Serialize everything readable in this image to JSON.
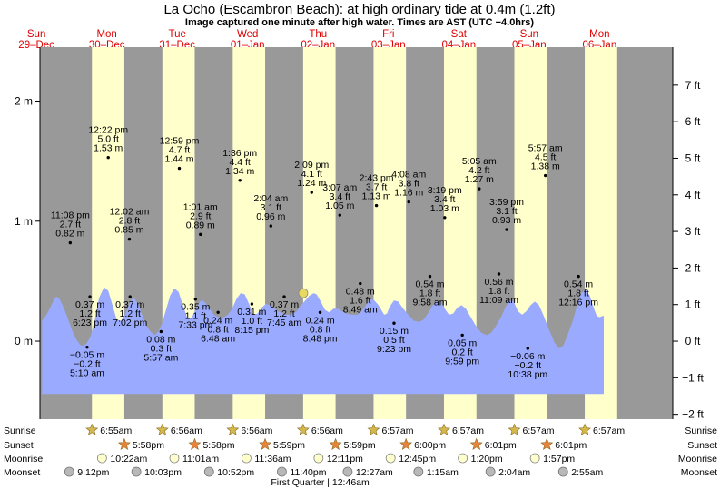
{
  "header": {
    "title": "La Ocho (Escambron Beach): at high  ordinary tide at 0.4m (1.2ft)",
    "subtitle": "Image captured one minute after high water. Times are AST (UTC −4.0hrs)"
  },
  "colors": {
    "night": "#999999",
    "day": "#ffffcc",
    "tide": "#9aaaff",
    "day_label": "#e00000",
    "sun_marker": "#e8d860",
    "sunrise_icon": "#d4b84a",
    "sunset_icon": "#e8843a",
    "moonrise_icon": "#ffffcc",
    "moonset_icon": "#b8b8b8"
  },
  "chart_data": {
    "type": "area",
    "x_unit": "days from 29-Dec 00:00 AST",
    "xlim": [
      0.55,
      9.54
    ],
    "ylim": [
      -0.65,
      2.45
    ],
    "y_left_ticks": [
      {
        "v": 0,
        "label": "0 m"
      },
      {
        "v": 1,
        "label": "1 m"
      },
      {
        "v": 2,
        "label": "2 m"
      }
    ],
    "y_right_ticks": [
      {
        "v": -0.6096,
        "label": "−2 ft"
      },
      {
        "v": -0.3048,
        "label": "−1 ft"
      },
      {
        "v": 0,
        "label": "0 ft"
      },
      {
        "v": 0.3048,
        "label": "1 ft"
      },
      {
        "v": 0.6096,
        "label": "2 ft"
      },
      {
        "v": 0.9144,
        "label": "3 ft"
      },
      {
        "v": 1.2192,
        "label": "4 ft"
      },
      {
        "v": 1.524,
        "label": "5 ft"
      },
      {
        "v": 1.8288,
        "label": "6 ft"
      },
      {
        "v": 2.1336,
        "label": "7 ft"
      }
    ],
    "days": [
      {
        "c": 0.5,
        "wd": "Sun",
        "d": "29–Dec"
      },
      {
        "c": 1.5,
        "wd": "Mon",
        "d": "30–Dec"
      },
      {
        "c": 2.5,
        "wd": "Tue",
        "d": "31–Dec"
      },
      {
        "c": 3.5,
        "wd": "Wed",
        "d": "01–Jan"
      },
      {
        "c": 4.5,
        "wd": "Thu",
        "d": "02–Jan"
      },
      {
        "c": 5.5,
        "wd": "Fri",
        "d": "03–Jan"
      },
      {
        "c": 6.5,
        "wd": "Sat",
        "d": "04–Jan"
      },
      {
        "c": 7.5,
        "wd": "Sun",
        "d": "05–Jan"
      },
      {
        "c": 8.5,
        "wd": "Mon",
        "d": "06–Jan"
      }
    ],
    "daylight": [
      [
        1.2882,
        1.7486
      ],
      [
        2.2889,
        2.7486
      ],
      [
        3.2889,
        3.7493
      ],
      [
        4.2889,
        4.7493
      ],
      [
        5.2896,
        5.75
      ],
      [
        6.2896,
        6.7507
      ],
      [
        7.2896,
        7.7507
      ],
      [
        8.2896,
        8.7507
      ]
    ],
    "tide_curve": [
      [
        0.58,
        0.17
      ],
      [
        0.62,
        0.2
      ],
      [
        0.67,
        0.25
      ],
      [
        0.72,
        0.31
      ],
      [
        0.76,
        0.36
      ],
      [
        0.79,
        0.37
      ],
      [
        0.83,
        0.35
      ],
      [
        0.88,
        0.29
      ],
      [
        0.94,
        0.2
      ],
      [
        1,
        0.1
      ],
      [
        1.06,
        0.02
      ],
      [
        1.12,
        -0.03
      ],
      [
        1.16,
        -0.04
      ],
      [
        1.21,
        -0.02
      ],
      [
        1.27,
        0.04
      ],
      [
        1.33,
        0.18
      ],
      [
        1.39,
        0.36
      ],
      [
        1.46,
        0.45
      ],
      [
        1.52,
        0.42
      ],
      [
        1.58,
        0.3
      ],
      [
        1.64,
        0.18
      ],
      [
        1.7,
        0.17
      ],
      [
        1.76,
        0.22
      ],
      [
        1.82,
        0.31
      ],
      [
        1.87,
        0.36
      ],
      [
        1.9,
        0.35
      ],
      [
        1.95,
        0.3
      ],
      [
        2,
        0.22
      ],
      [
        2.06,
        0.13
      ],
      [
        2.12,
        0.08
      ],
      [
        2.18,
        0.05
      ],
      [
        2.23,
        0.08
      ],
      [
        2.28,
        0.14
      ],
      [
        2.34,
        0.26
      ],
      [
        2.4,
        0.38
      ],
      [
        2.46,
        0.44
      ],
      [
        2.52,
        0.41
      ],
      [
        2.58,
        0.3
      ],
      [
        2.64,
        0.2
      ],
      [
        2.7,
        0.19
      ],
      [
        2.76,
        0.26
      ],
      [
        2.82,
        0.33
      ],
      [
        2.86,
        0.34
      ],
      [
        2.9,
        0.32
      ],
      [
        2.96,
        0.27
      ],
      [
        3.02,
        0.22
      ],
      [
        3.08,
        0.2
      ],
      [
        3.16,
        0.2
      ],
      [
        3.22,
        0.22
      ],
      [
        3.28,
        0.27
      ],
      [
        3.34,
        0.35
      ],
      [
        3.4,
        0.4
      ],
      [
        3.46,
        0.39
      ],
      [
        3.52,
        0.31
      ],
      [
        3.58,
        0.22
      ],
      [
        3.64,
        0.23
      ],
      [
        3.7,
        0.28
      ],
      [
        3.76,
        0.31
      ],
      [
        3.82,
        0.3
      ],
      [
        3.88,
        0.27
      ],
      [
        3.96,
        0.24
      ],
      [
        4.04,
        0.22
      ],
      [
        4.12,
        0.22
      ],
      [
        4.2,
        0.25
      ],
      [
        4.26,
        0.3
      ],
      [
        4.32,
        0.34
      ],
      [
        4.38,
        0.38
      ],
      [
        4.44,
        0.4
      ],
      [
        4.48,
        0.39
      ],
      [
        4.54,
        0.33
      ],
      [
        4.6,
        0.26
      ],
      [
        4.66,
        0.24
      ],
      [
        4.72,
        0.27
      ],
      [
        4.78,
        0.27
      ],
      [
        4.84,
        0.25
      ],
      [
        4.9,
        0.23
      ],
      [
        4.98,
        0.22
      ],
      [
        5.06,
        0.22
      ],
      [
        5.12,
        0.25
      ],
      [
        5.18,
        0.3
      ],
      [
        5.24,
        0.35
      ],
      [
        5.3,
        0.34
      ],
      [
        5.36,
        0.3
      ],
      [
        5.4,
        0.26
      ],
      [
        5.44,
        0.22
      ],
      [
        5.48,
        0.23
      ],
      [
        5.52,
        0.29
      ],
      [
        5.58,
        0.34
      ],
      [
        5.64,
        0.33
      ],
      [
        5.7,
        0.28
      ],
      [
        5.78,
        0.22
      ],
      [
        5.86,
        0.17
      ],
      [
        5.94,
        0.16
      ],
      [
        6,
        0.18
      ],
      [
        6.06,
        0.23
      ],
      [
        6.12,
        0.29
      ],
      [
        6.18,
        0.33
      ],
      [
        6.24,
        0.33
      ],
      [
        6.3,
        0.27
      ],
      [
        6.36,
        0.22
      ],
      [
        6.42,
        0.23
      ],
      [
        6.48,
        0.28
      ],
      [
        6.54,
        0.3
      ],
      [
        6.6,
        0.27
      ],
      [
        6.66,
        0.21
      ],
      [
        6.74,
        0.13
      ],
      [
        6.82,
        0.07
      ],
      [
        6.9,
        0.05
      ],
      [
        6.96,
        0.07
      ],
      [
        7.02,
        0.12
      ],
      [
        7.1,
        0.2
      ],
      [
        7.16,
        0.28
      ],
      [
        7.22,
        0.34
      ],
      [
        7.28,
        0.33
      ],
      [
        7.34,
        0.25
      ],
      [
        7.4,
        0.22
      ],
      [
        7.46,
        0.25
      ],
      [
        7.52,
        0.3
      ],
      [
        7.58,
        0.33
      ],
      [
        7.64,
        0.3
      ],
      [
        7.7,
        0.22
      ],
      [
        7.78,
        0.1
      ],
      [
        7.86,
        -0.01
      ],
      [
        7.92,
        -0.06
      ],
      [
        7.98,
        -0.04
      ],
      [
        8.04,
        0.04
      ],
      [
        8.12,
        0.17
      ],
      [
        8.18,
        0.3
      ],
      [
        8.24,
        0.4
      ],
      [
        8.3,
        0.43
      ],
      [
        8.36,
        0.38
      ],
      [
        8.42,
        0.27
      ],
      [
        8.46,
        0.21
      ],
      [
        8.5,
        0.2
      ],
      [
        8.54,
        0.21
      ],
      [
        8.56,
        0.21
      ]
    ],
    "extremes": [
      {
        "x": 0.98,
        "y": 0.82,
        "t": "11:08 pm",
        "ft": "2.7 ft",
        "m": "0.82 m",
        "pos": "above"
      },
      {
        "x": 1.26,
        "y": 0.37,
        "t": "6:23 pm",
        "ft": "1.2 ft",
        "m": "0.37 m",
        "pos": "below"
      },
      {
        "x": 1.22,
        "y": -0.05,
        "t": "5:10 am",
        "ft": "−0.2 ft",
        "m": "−0.05 m",
        "pos": "below"
      },
      {
        "x": 1.52,
        "y": 1.53,
        "t": "12:22 pm",
        "ft": "5.0 ft",
        "m": "1.53 m",
        "pos": "above"
      },
      {
        "x": 1.83,
        "y": 0.37,
        "t": "7:02 pm",
        "ft": "1.2 ft",
        "m": "0.37 m",
        "pos": "below"
      },
      {
        "x": 1.82,
        "y": 0.85,
        "t": "12:02 am",
        "ft": "2.8 ft",
        "m": "0.85 m",
        "pos": "above"
      },
      {
        "x": 2.27,
        "y": 0.08,
        "t": "5:57 am",
        "ft": "0.3 ft",
        "m": "0.08 m",
        "pos": "below"
      },
      {
        "x": 2.53,
        "y": 1.44,
        "t": "12:59 pm",
        "ft": "4.7 ft",
        "m": "1.44 m",
        "pos": "above"
      },
      {
        "x": 2.76,
        "y": 0.35,
        "t": "7:33 pm",
        "ft": "1.1 ft",
        "m": "0.35 m",
        "pos": "below"
      },
      {
        "x": 2.83,
        "y": 0.89,
        "t": "1:01 am",
        "ft": "2.9 ft",
        "m": "0.89 m",
        "pos": "above"
      },
      {
        "x": 3.08,
        "y": 0.24,
        "t": "6:48 am",
        "ft": "0.8 ft",
        "m": "0.24 m",
        "pos": "below"
      },
      {
        "x": 3.39,
        "y": 1.34,
        "t": "1:36 pm",
        "ft": "4.4 ft",
        "m": "1.34 m",
        "pos": "above"
      },
      {
        "x": 3.56,
        "y": 0.31,
        "t": "8:15 pm",
        "ft": "1.0 ft",
        "m": "0.31 m",
        "pos": "below"
      },
      {
        "x": 3.83,
        "y": 0.96,
        "t": "2:04 am",
        "ft": "3.1 ft",
        "m": "0.96 m",
        "pos": "above"
      },
      {
        "x": 4.02,
        "y": 0.37,
        "t": "7:45 am",
        "ft": "1.2 ft",
        "m": "0.37 m",
        "pos": "below"
      },
      {
        "x": 4.41,
        "y": 1.24,
        "t": "2:09 pm",
        "ft": "4.1 ft",
        "m": "1.24 m",
        "pos": "above"
      },
      {
        "x": 4.53,
        "y": 0.24,
        "t": "8:48 pm",
        "ft": "0.8 ft",
        "m": "0.24 m",
        "pos": "below"
      },
      {
        "x": 4.81,
        "y": 1.05,
        "t": "3:07 am",
        "ft": "3.4 ft",
        "m": "1.05 m",
        "pos": "above"
      },
      {
        "x": 5.1,
        "y": 0.48,
        "t": "8:49 am",
        "ft": "1.6 ft",
        "m": "0.48 m",
        "pos": "below"
      },
      {
        "x": 5.33,
        "y": 1.13,
        "t": "2:43 pm",
        "ft": "3.7 ft",
        "m": "1.13 m",
        "pos": "above"
      },
      {
        "x": 5.58,
        "y": 0.15,
        "t": "9:23 pm",
        "ft": "0.5 ft",
        "m": "0.15 m",
        "pos": "below"
      },
      {
        "x": 5.79,
        "y": 1.16,
        "t": "4:08 am",
        "ft": "3.8 ft",
        "m": "1.16 m",
        "pos": "above"
      },
      {
        "x": 6.09,
        "y": 0.54,
        "t": "9:58 am",
        "ft": "1.8 ft",
        "m": "0.54 m",
        "pos": "below"
      },
      {
        "x": 6.3,
        "y": 1.03,
        "t": "3:19 pm",
        "ft": "3.4 ft",
        "m": "1.03 m",
        "pos": "above"
      },
      {
        "x": 6.55,
        "y": 0.05,
        "t": "9:59 pm",
        "ft": "0.2 ft",
        "m": "0.05 m",
        "pos": "below"
      },
      {
        "x": 6.79,
        "y": 1.27,
        "t": "5:05 am",
        "ft": "4.2 ft",
        "m": "1.27 m",
        "pos": "above"
      },
      {
        "x": 7.07,
        "y": 0.56,
        "t": "11:09 am",
        "ft": "1.8 ft",
        "m": "0.56 m",
        "pos": "below"
      },
      {
        "x": 7.18,
        "y": 0.93,
        "t": "3:59 pm",
        "ft": "3.1 ft",
        "m": "0.93 m",
        "pos": "above"
      },
      {
        "x": 7.48,
        "y": -0.06,
        "t": "10:38 pm",
        "ft": "−0.2 ft",
        "m": "−0.06 m",
        "pos": "below"
      },
      {
        "x": 7.73,
        "y": 1.38,
        "t": "5:57 am",
        "ft": "4.5 ft",
        "m": "1.38 m",
        "pos": "above"
      },
      {
        "x": 8.2,
        "y": 0.54,
        "t": "12:16 pm",
        "ft": "1.8 ft",
        "m": "0.54 m",
        "pos": "below"
      }
    ],
    "now_marker": {
      "x": 4.29,
      "y": 0.4
    },
    "astro": {
      "row_labels": [
        "Sunrise",
        "Sunset",
        "Moonrise",
        "Moonset"
      ],
      "sunrise": [
        {
          "x": 1.2882,
          "t": "6:55am"
        },
        {
          "x": 2.2889,
          "t": "6:56am"
        },
        {
          "x": 3.2889,
          "t": "6:56am"
        },
        {
          "x": 4.2889,
          "t": "6:56am"
        },
        {
          "x": 5.2896,
          "t": "6:57am"
        },
        {
          "x": 6.2896,
          "t": "6:57am"
        },
        {
          "x": 7.2896,
          "t": "6:57am"
        },
        {
          "x": 8.2896,
          "t": "6:57am"
        }
      ],
      "sunset": [
        {
          "x": 1.7486,
          "t": "5:58pm"
        },
        {
          "x": 2.7486,
          "t": "5:58pm"
        },
        {
          "x": 3.7493,
          "t": "5:59pm"
        },
        {
          "x": 4.7493,
          "t": "5:59pm"
        },
        {
          "x": 5.75,
          "t": "6:00pm"
        },
        {
          "x": 6.7507,
          "t": "6:01pm"
        },
        {
          "x": 7.7507,
          "t": "6:01pm"
        }
      ],
      "moonrise": [
        {
          "x": 1.4319,
          "t": "10:22am"
        },
        {
          "x": 2.459,
          "t": "11:01am"
        },
        {
          "x": 3.4833,
          "t": "11:36am"
        },
        {
          "x": 4.5076,
          "t": "12:11pm"
        },
        {
          "x": 5.5313,
          "t": "12:45pm"
        },
        {
          "x": 6.5556,
          "t": "1:20pm"
        },
        {
          "x": 7.5813,
          "t": "1:57pm"
        }
      ],
      "moonset": [
        {
          "x": 0.9667,
          "t": "9:12pm"
        },
        {
          "x": 1.9188,
          "t": "10:03pm"
        },
        {
          "x": 2.9528,
          "t": "10:52pm"
        },
        {
          "x": 3.9861,
          "t": "11:40pm"
        },
        {
          "x": 4.9215,
          "t": "12:27am"
        },
        {
          "x": 5.9264,
          "t": "1:15am"
        },
        {
          "x": 6.9493,
          "t": "2:04am"
        },
        {
          "x": 7.9826,
          "t": "2:55am"
        }
      ],
      "moon_phase": "First Quarter | 12:46am"
    }
  }
}
